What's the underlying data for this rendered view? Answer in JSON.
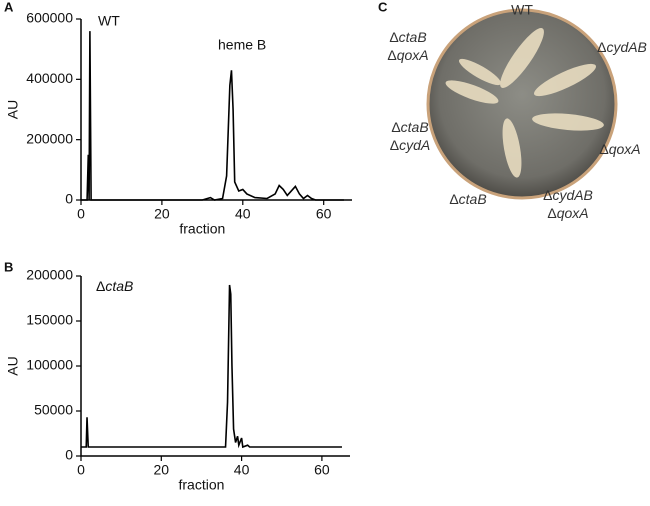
{
  "chart_data": [
    {
      "type": "line",
      "panel": "A",
      "annotations": [
        "WT",
        "heme B"
      ],
      "xlabel": "fraction",
      "ylabel": "AU",
      "xlim": [
        0,
        67
      ],
      "xticks": [
        0,
        20,
        40,
        60
      ],
      "ylim": [
        0,
        600000
      ],
      "yticks": [
        0,
        200000,
        400000,
        600000
      ],
      "series": [
        {
          "color": "#000000",
          "x": [
            0,
            1.5,
            1.8,
            2.0,
            2.2,
            2.5,
            3,
            30,
            32,
            33,
            35,
            36,
            36.8,
            37.2,
            37.6,
            38,
            39,
            40,
            41,
            43,
            46,
            48,
            49,
            50,
            51,
            52,
            53,
            54,
            55,
            56,
            57,
            58,
            65
          ],
          "values": [
            0,
            0,
            150000,
            0,
            560000,
            0,
            0,
            0,
            8000,
            0,
            5000,
            80000,
            380000,
            430000,
            300000,
            60000,
            30000,
            35000,
            20000,
            8000,
            5000,
            20000,
            48000,
            35000,
            15000,
            30000,
            45000,
            20000,
            5000,
            15000,
            5000,
            0,
            0
          ]
        }
      ]
    },
    {
      "type": "line",
      "panel": "B",
      "annotations": [
        "ΔctaB"
      ],
      "xlabel": "fraction",
      "ylabel": "AU",
      "xlim": [
        0,
        67
      ],
      "xticks": [
        0,
        20,
        40,
        60
      ],
      "ylim": [
        0,
        200000
      ],
      "yticks": [
        0,
        50000,
        100000,
        150000,
        200000
      ],
      "series": [
        {
          "color": "#000000",
          "x": [
            0,
            1.3,
            1.5,
            1.8,
            36,
            36.5,
            37,
            37.3,
            37.6,
            38,
            38.5,
            39,
            39.3,
            40,
            40.3,
            41.5,
            42,
            65
          ],
          "values": [
            10000,
            10000,
            43000,
            10000,
            10000,
            60000,
            190000,
            180000,
            100000,
            30000,
            15000,
            22000,
            12000,
            20000,
            10000,
            12000,
            10000,
            10000
          ]
        }
      ]
    }
  ],
  "panel_c": {
    "panel": "C",
    "strains": [
      [
        "WT"
      ],
      [
        "ΔcydAB"
      ],
      [
        "ΔqoxA"
      ],
      [
        "ΔcydAB",
        "ΔqoxA"
      ],
      [
        "ΔctaB"
      ],
      [
        "ΔctaB",
        "ΔcydA"
      ],
      [
        "ΔctaB",
        "ΔqoxA"
      ]
    ]
  }
}
